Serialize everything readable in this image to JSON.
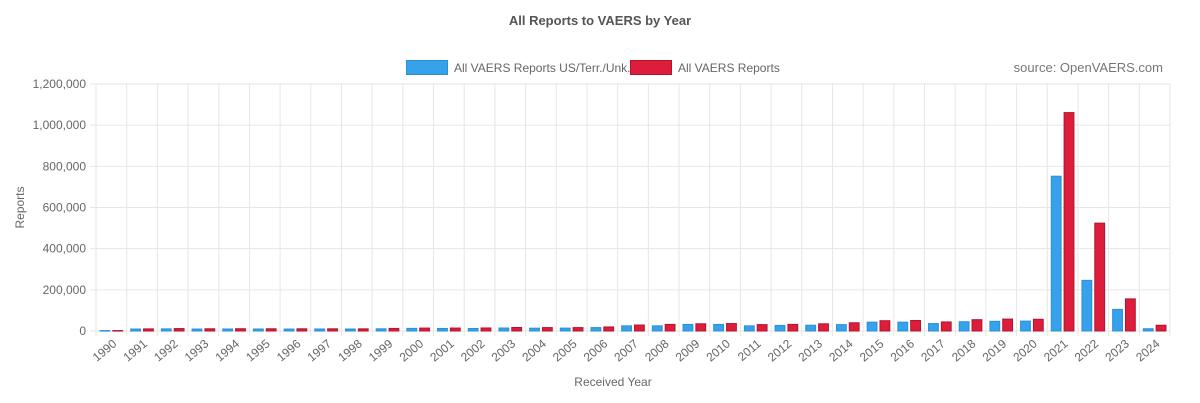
{
  "title": "All Reports to VAERS by Year",
  "source_note": "source: OpenVAERS.com",
  "colors": {
    "us": "#36a2eb",
    "all": "#dc1e3c",
    "grid": "#e6e6e6",
    "axis_text": "#666666"
  },
  "chart_data": {
    "type": "bar",
    "title": "All Reports to VAERS by Year",
    "xlabel": "Received Year",
    "ylabel": "Reports",
    "ylim": [
      0,
      1200000
    ],
    "yticks": [
      0,
      200000,
      400000,
      600000,
      800000,
      1000000,
      1200000
    ],
    "ytick_labels": [
      "0",
      "200,000",
      "400,000",
      "600,000",
      "800,000",
      "1,000,000",
      "1,200,000"
    ],
    "grid": true,
    "legend_position": "top",
    "categories": [
      "1990",
      "1991",
      "1992",
      "1993",
      "1994",
      "1995",
      "1996",
      "1997",
      "1998",
      "1999",
      "2000",
      "2001",
      "2002",
      "2003",
      "2004",
      "2005",
      "2006",
      "2007",
      "2008",
      "2009",
      "2010",
      "2011",
      "2012",
      "2013",
      "2014",
      "2015",
      "2016",
      "2017",
      "2018",
      "2019",
      "2020",
      "2021",
      "2022",
      "2023",
      "2024"
    ],
    "series": [
      {
        "name": "All VAERS Reports US/Terr./Unk.",
        "values": [
          2100,
          9500,
          10300,
          9500,
          9800,
          9800,
          9500,
          9800,
          9700,
          10700,
          12800,
          12400,
          12300,
          14600,
          13800,
          14100,
          16500,
          25000,
          25000,
          32000,
          32000,
          25000,
          27000,
          28000,
          31000,
          43000,
          43000,
          36000,
          45000,
          47000,
          48000,
          752000,
          246000,
          105000,
          11000
        ]
      },
      {
        "name": "All VAERS Reports",
        "values": [
          2100,
          10300,
          11800,
          10800,
          11000,
          10900,
          10700,
          10700,
          10500,
          12500,
          14200,
          14300,
          14700,
          17000,
          16500,
          16500,
          19700,
          29000,
          32000,
          35000,
          36000,
          31000,
          32000,
          35000,
          40000,
          50000,
          51000,
          44000,
          55000,
          58000,
          57000,
          1061000,
          524000,
          156000,
          28000
        ]
      }
    ]
  }
}
